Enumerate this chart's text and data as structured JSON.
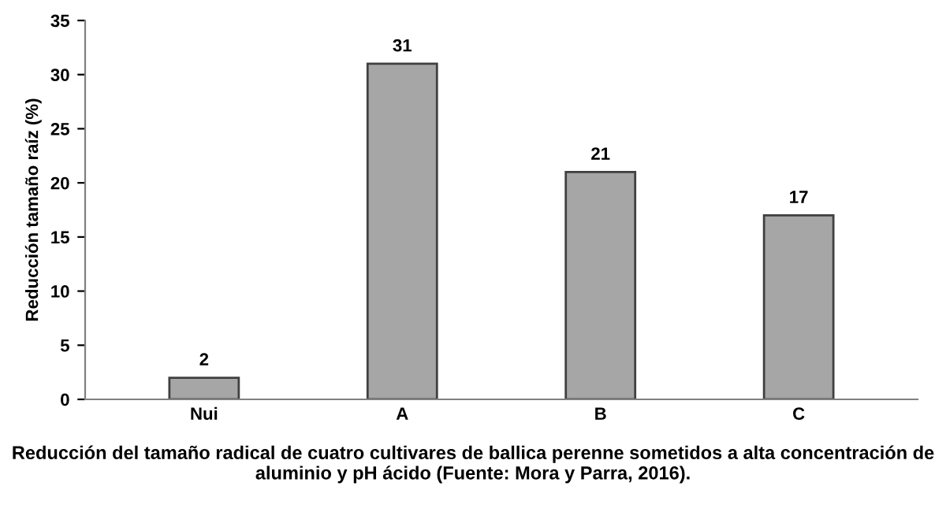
{
  "chart_data": {
    "type": "bar",
    "ylabel": "Reducción tamaño raíz (%)",
    "categories": [
      "Nui",
      "A",
      "B",
      "C"
    ],
    "values": [
      2,
      31,
      21,
      17
    ],
    "color": "#a6a6a6",
    "ylim": [
      0,
      35
    ],
    "yticks": [
      0,
      5,
      10,
      15,
      20,
      25,
      30,
      35
    ],
    "grid": false,
    "data_labels": true,
    "annotations": [
      "Reducción del tamaño radical de cuatro cultivares de ballica perenne sometidos a alta concentración de aluminio y pH ácido (Fuente: Mora y Parra, 2016)."
    ]
  }
}
